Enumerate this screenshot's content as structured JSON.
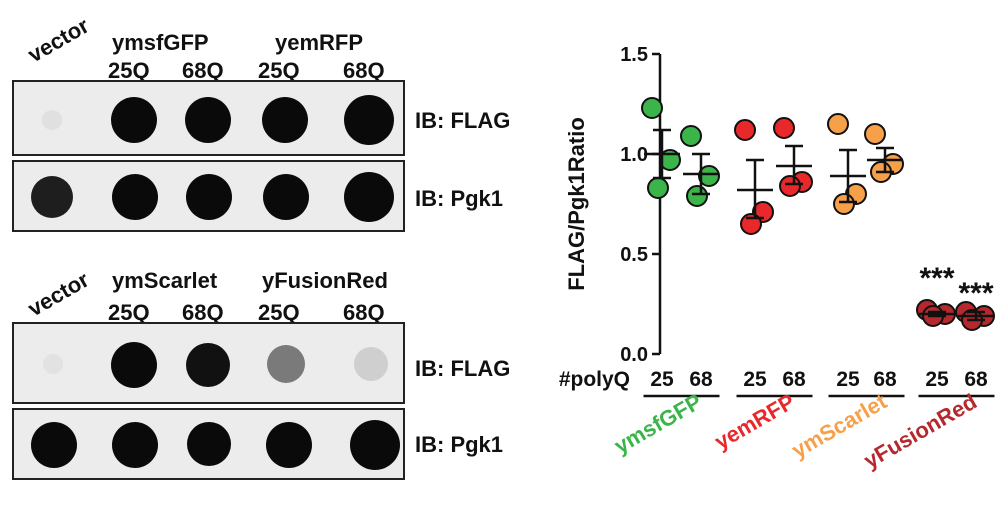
{
  "blot_top": {
    "vector_label": "vector",
    "group1": "ymsfGFP",
    "group2": "yemRFP",
    "lane_labels": [
      "25Q",
      "68Q",
      "25Q",
      "68Q"
    ],
    "row1_label": "IB: FLAG",
    "row2_label": "IB: Pgk1"
  },
  "blot_bottom": {
    "vector_label": "vector",
    "group1": "ymScarlet",
    "group2": "yFusionRed",
    "lane_labels": [
      "25Q",
      "68Q",
      "25Q",
      "68Q"
    ],
    "row1_label": "IB: FLAG",
    "row2_label": "IB: Pgk1"
  },
  "chart_data": {
    "type": "scatter",
    "ylabel": "FLAG/Pgk1Ratio",
    "ylim": [
      0,
      1.5
    ],
    "yticks": [
      "0.0",
      "0.5",
      "1.0",
      "1.5"
    ],
    "x_axis_title": "#polyQ",
    "polyq_labels": [
      "25",
      "68",
      "25",
      "68",
      "25",
      "68",
      "25",
      "68"
    ],
    "significance": [
      "***",
      "***"
    ],
    "groups": [
      {
        "name": "ymsfGFP",
        "color": "#3bb54a"
      },
      {
        "name": "yemRFP",
        "color": "#e8282a"
      },
      {
        "name": "ymScarlet",
        "color": "#f7a04a"
      },
      {
        "name": "yFusionRed",
        "color": "#b5282d"
      }
    ],
    "series": [
      {
        "group": 0,
        "polyq": "25",
        "points": [
          1.23,
          0.97,
          0.83
        ],
        "mean": 1.0,
        "sem_lo": 0.88,
        "sem_hi": 1.12
      },
      {
        "group": 0,
        "polyq": "68",
        "points": [
          1.09,
          0.89,
          0.79
        ],
        "mean": 0.9,
        "sem_lo": 0.8,
        "sem_hi": 1.0
      },
      {
        "group": 1,
        "polyq": "25",
        "points": [
          1.12,
          0.71,
          0.65
        ],
        "mean": 0.82,
        "sem_lo": 0.68,
        "sem_hi": 0.97
      },
      {
        "group": 1,
        "polyq": "68",
        "points": [
          1.13,
          0.86,
          0.84
        ],
        "mean": 0.94,
        "sem_lo": 0.85,
        "sem_hi": 1.04
      },
      {
        "group": 2,
        "polyq": "25",
        "points": [
          1.15,
          0.8,
          0.75
        ],
        "mean": 0.89,
        "sem_lo": 0.76,
        "sem_hi": 1.02
      },
      {
        "group": 2,
        "polyq": "68",
        "points": [
          1.1,
          0.95,
          0.91
        ],
        "mean": 0.97,
        "sem_lo": 0.91,
        "sem_hi": 1.03
      },
      {
        "group": 3,
        "polyq": "25",
        "points": [
          0.22,
          0.2,
          0.19
        ],
        "mean": 0.2,
        "sem_lo": 0.19,
        "sem_hi": 0.21
      },
      {
        "group": 3,
        "polyq": "68",
        "points": [
          0.21,
          0.19,
          0.17
        ],
        "mean": 0.19,
        "sem_lo": 0.17,
        "sem_hi": 0.21
      }
    ]
  }
}
